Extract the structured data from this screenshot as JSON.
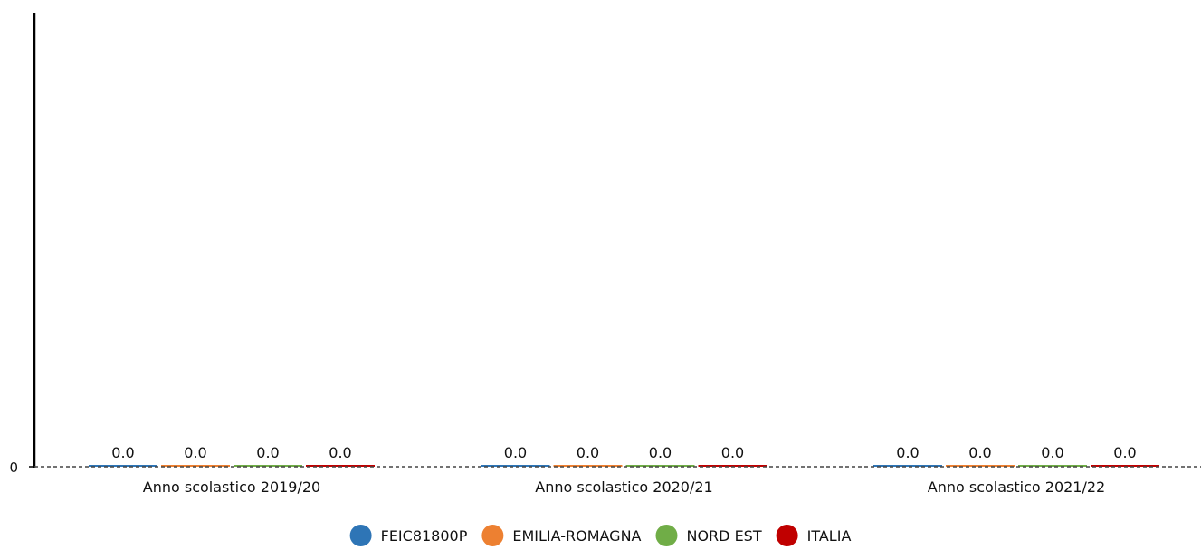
{
  "chart_data": {
    "type": "bar",
    "categories": [
      "Anno scolastico 2019/20",
      "Anno scolastico 2020/21",
      "Anno scolastico 2021/22"
    ],
    "series": [
      {
        "name": "FEIC81800P",
        "values": [
          0.0,
          0.0,
          0.0
        ],
        "color": "#2e75b6"
      },
      {
        "name": "EMILIA-ROMAGNA",
        "values": [
          0.0,
          0.0,
          0.0
        ],
        "color": "#ed8031"
      },
      {
        "name": "NORD EST",
        "values": [
          0.0,
          0.0,
          0.0
        ],
        "color": "#70ad47"
      },
      {
        "name": "ITALIA",
        "values": [
          0.0,
          0.0,
          0.0
        ],
        "color": "#c00000"
      }
    ],
    "value_labels": [
      [
        "0.0",
        "0.0",
        "0.0",
        "0.0"
      ],
      [
        "0.0",
        "0.0",
        "0.0",
        "0.0"
      ],
      [
        "0.0",
        "0.0",
        "0.0",
        "0.0"
      ]
    ],
    "yticks": [
      {
        "value": 0,
        "label": "0"
      }
    ],
    "ylim": [
      0,
      1
    ],
    "legend_position": "bottom-center",
    "grid": false
  }
}
